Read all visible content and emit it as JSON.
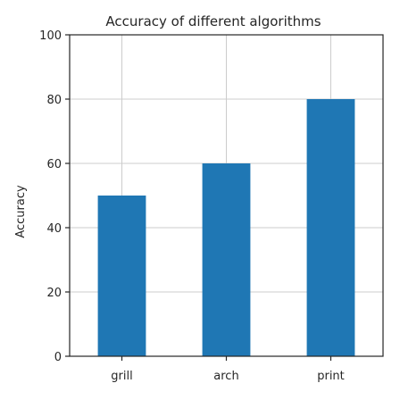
{
  "chart_data": {
    "type": "bar",
    "title": "Accuracy of different algorithms",
    "xlabel": "",
    "ylabel": "Accuracy",
    "categories": [
      "grill",
      "arch",
      "print"
    ],
    "values": [
      50,
      60,
      80
    ],
    "ylim": [
      0,
      100
    ],
    "yticks": [
      0,
      20,
      40,
      60,
      80,
      100
    ],
    "grid": true,
    "bar_color": "#1f77b4"
  }
}
